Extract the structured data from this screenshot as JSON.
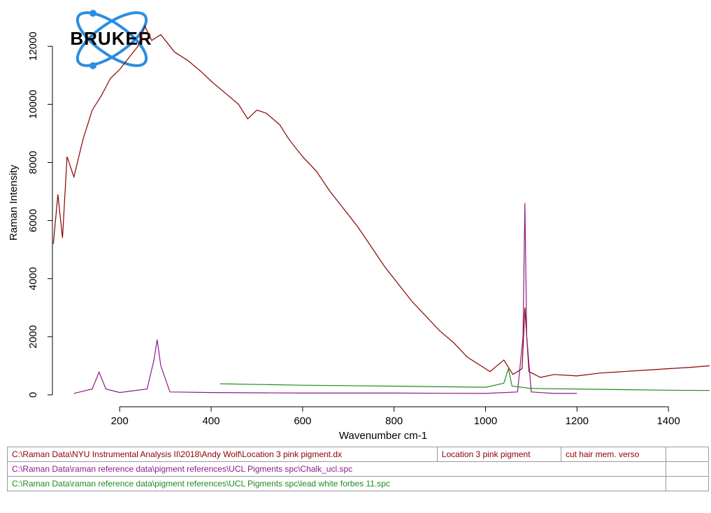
{
  "chart_data": {
    "type": "line",
    "logo": "BRUKER",
    "x_label": "Wavenumber cm-1",
    "y_label": "Raman Intensity",
    "xlim": [
      53,
      1493
    ],
    "ylim": [
      -170,
      13400
    ],
    "xticks": [
      200,
      400,
      600,
      800,
      1000,
      1200,
      1400
    ],
    "yticks": [
      0,
      2000,
      4000,
      6000,
      8000,
      10000,
      12000
    ],
    "series": [
      {
        "name": "C:\\Raman Data\\NYU Instrumental Analysis II\\2018\\Andy Wolf\\Location 3 pink pigment.dx",
        "sample": "Location 3 pink pigment",
        "note": "cut hair mem. verso",
        "color": "#8b0000",
        "x": [
          55,
          65,
          75,
          85,
          100,
          120,
          140,
          160,
          180,
          200,
          220,
          240,
          255,
          270,
          290,
          320,
          350,
          380,
          400,
          430,
          460,
          480,
          500,
          520,
          550,
          570,
          600,
          630,
          660,
          690,
          720,
          750,
          780,
          810,
          840,
          870,
          900,
          930,
          960,
          990,
          1010,
          1040,
          1060,
          1080,
          1086,
          1095,
          1120,
          1150,
          1200,
          1250,
          1300,
          1350,
          1400,
          1450,
          1490
        ],
        "values": [
          5200,
          6900,
          5400,
          8200,
          7500,
          8800,
          9800,
          10300,
          10900,
          11200,
          11600,
          12000,
          12700,
          12200,
          12400,
          11800,
          11500,
          11100,
          10800,
          10400,
          10000,
          9500,
          9800,
          9700,
          9300,
          8800,
          8200,
          7700,
          7000,
          6400,
          5800,
          5100,
          4400,
          3800,
          3200,
          2700,
          2200,
          1800,
          1300,
          1000,
          800,
          1200,
          700,
          900,
          3000,
          800,
          600,
          700,
          650,
          750,
          800,
          850,
          900,
          950,
          1000
        ]
      },
      {
        "name": "C:\\Raman Data\\raman reference data\\pigment references\\UCL Pigments spc\\Chalk_ucl.spc",
        "color": "#8b1a8b",
        "x": [
          100,
          140,
          155,
          170,
          200,
          260,
          275,
          282,
          290,
          310,
          400,
          600,
          800,
          1000,
          1070,
          1082,
          1086,
          1090,
          1100,
          1150,
          1200
        ],
        "values": [
          50,
          200,
          780,
          200,
          80,
          200,
          1200,
          1900,
          1000,
          100,
          80,
          60,
          60,
          50,
          100,
          2000,
          6600,
          2000,
          100,
          50,
          50
        ]
      },
      {
        "name": "C:\\Raman Data\\raman reference data\\pigment references\\UCL Pigments spc\\lead white forbes 11.spc",
        "color": "#1e8a1e",
        "x": [
          420,
          600,
          800,
          1000,
          1040,
          1050,
          1058,
          1100,
          1200,
          1300,
          1400,
          1490
        ],
        "values": [
          380,
          330,
          300,
          260,
          400,
          900,
          300,
          220,
          200,
          180,
          160,
          150
        ]
      }
    ]
  }
}
